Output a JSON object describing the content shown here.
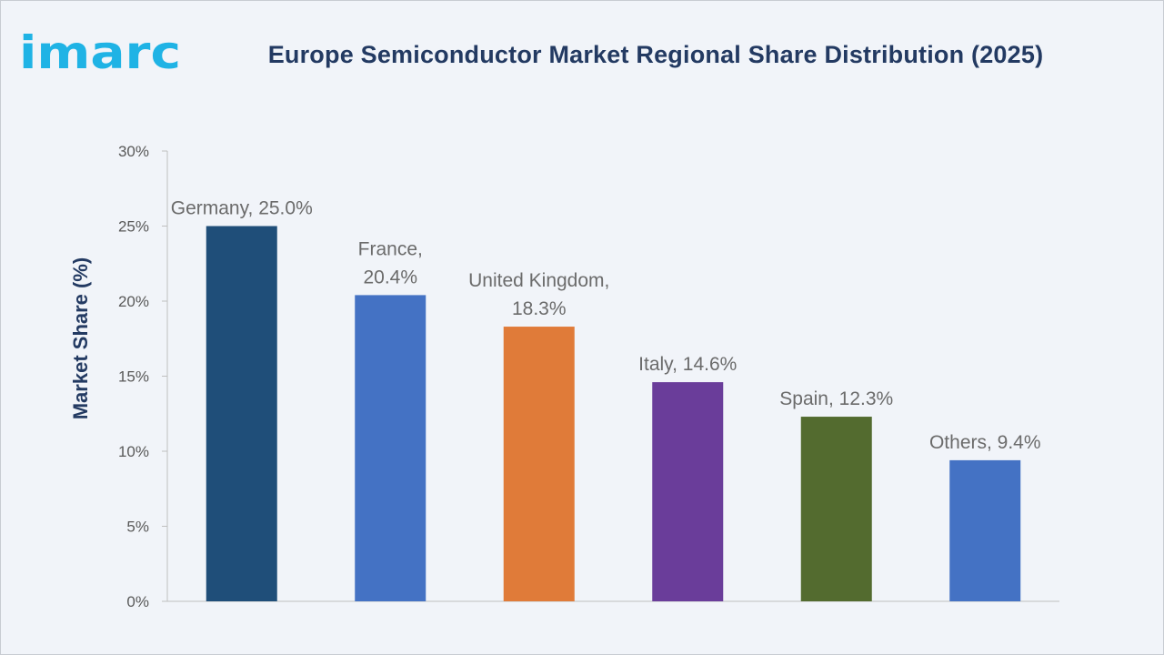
{
  "brand": {
    "logo_text": "imarc",
    "logo_color": "#1fb3e5"
  },
  "chart_data": {
    "type": "bar",
    "title": "Europe Semiconductor Market Regional Share Distribution (2025)",
    "ylabel": "Market Share (%)",
    "xlabel": "",
    "ylim": [
      0,
      30
    ],
    "yticks": [
      0,
      5,
      10,
      15,
      20,
      25,
      30
    ],
    "ytick_suffix": "%",
    "grid": false,
    "categories": [
      "Germany",
      "France",
      "United Kingdom",
      "Italy",
      "Spain",
      "Others"
    ],
    "values": [
      25.0,
      20.4,
      18.3,
      14.6,
      12.3,
      9.4
    ],
    "data_labels": [
      [
        "Germany, 25.0%"
      ],
      [
        "France,",
        "20.4%"
      ],
      [
        "United Kingdom,",
        "18.3%"
      ],
      [
        "Italy, 14.6%"
      ],
      [
        "Spain, 12.3%"
      ],
      [
        "Others, 9.4%"
      ]
    ],
    "colors": [
      "#1f4e79",
      "#4472c4",
      "#e07b39",
      "#6a3d9a",
      "#536b2f",
      "#4472c4"
    ]
  }
}
